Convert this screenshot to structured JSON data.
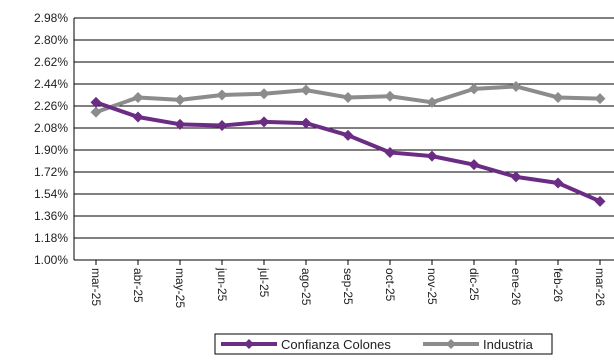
{
  "chart_data": {
    "type": "line",
    "title": "",
    "xlabel": "",
    "ylabel": "",
    "categories": [
      "mar-25",
      "abr-25",
      "may-25",
      "jun-25",
      "jul-25",
      "ago-25",
      "sep-25",
      "oct-25",
      "nov-25",
      "dic-25",
      "ene-26",
      "feb-26",
      "mar-26"
    ],
    "y_ticks": [
      "1.00%",
      "1.18%",
      "1.36%",
      "1.54%",
      "1.72%",
      "1.90%",
      "2.08%",
      "2.26%",
      "2.44%",
      "2.62%",
      "2.80%",
      "2.98%"
    ],
    "ylim": [
      1.0,
      2.98
    ],
    "y_unit": "%",
    "grid": true,
    "legend_position": "bottom",
    "series": [
      {
        "name": "Confianza Colones",
        "color": "#6b2c84",
        "values": [
          2.29,
          2.17,
          2.11,
          2.1,
          2.13,
          2.12,
          2.02,
          1.88,
          1.85,
          1.78,
          1.68,
          1.63,
          1.48
        ]
      },
      {
        "name": "Industria",
        "color": "#8c8c8c",
        "values": [
          2.21,
          2.33,
          2.31,
          2.35,
          2.36,
          2.39,
          2.33,
          2.34,
          2.29,
          2.4,
          2.42,
          2.33,
          2.32
        ]
      }
    ]
  }
}
